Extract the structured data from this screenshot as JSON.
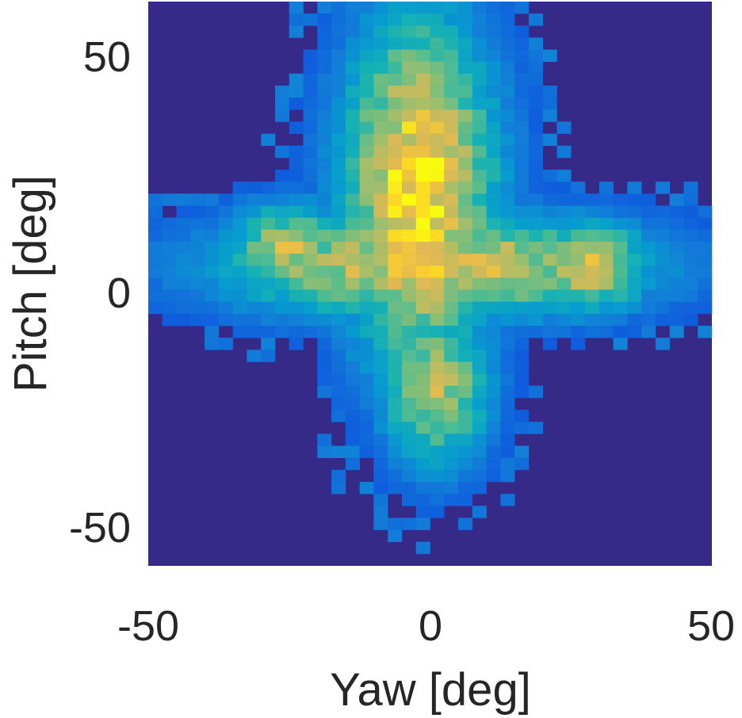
{
  "chart_data": {
    "type": "heatmap",
    "title": "",
    "xlabel": "Yaw [deg]",
    "ylabel": "Pitch [deg]",
    "xlim": [
      -50,
      50
    ],
    "ylim": [
      -58,
      60
    ],
    "xticks": [
      -50,
      0,
      50
    ],
    "yticks": [
      50,
      0,
      -50
    ],
    "xtick_labels": [
      "-50",
      "0",
      "50"
    ],
    "ytick_labels": [
      "50",
      "0",
      "-50"
    ],
    "bin_size_deg": 2.5,
    "colormap": "parula",
    "background_color": "#352A87",
    "grid": false,
    "legend": "none",
    "description_of_distribution": "Cross-shaped density of head orientations: vertical lobe along Yaw≈-2 extending Pitch -38..60 (peak near Pitch≈25), horizontal lobe along Pitch≈5 extending Yaw -40..45 with secondary maxima near Yaw≈-25 and Yaw≈28.",
    "peaks": [
      {
        "yaw": -2,
        "pitch": 25,
        "intensity": 1.0
      },
      {
        "yaw": -25,
        "pitch": 8,
        "intensity": 0.78
      },
      {
        "yaw": 28,
        "pitch": 5,
        "intensity": 0.8
      },
      {
        "yaw": 0,
        "pitch": 5,
        "intensity": 0.85
      }
    ]
  }
}
